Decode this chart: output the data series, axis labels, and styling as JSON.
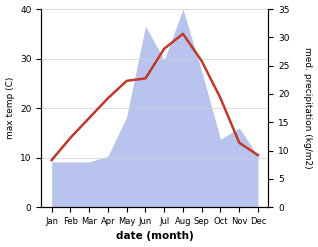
{
  "months": [
    "Jan",
    "Feb",
    "Mar",
    "Apr",
    "May",
    "Jun",
    "Jul",
    "Aug",
    "Sep",
    "Oct",
    "Nov",
    "Dec"
  ],
  "temperature": [
    9.5,
    14.0,
    18.0,
    22.0,
    25.5,
    26.0,
    32.0,
    35.0,
    29.5,
    22.0,
    13.0,
    10.5
  ],
  "precipitation": [
    8.0,
    8.0,
    8.0,
    9.0,
    16.0,
    32.0,
    26.0,
    35.0,
    24.0,
    12.0,
    14.0,
    9.0
  ],
  "temp_color": "#c0392b",
  "precip_color": "#b8c4ee",
  "left_ylim": [
    0,
    40
  ],
  "right_ylim": [
    0,
    35
  ],
  "left_yticks": [
    0,
    10,
    20,
    30,
    40
  ],
  "right_yticks": [
    0,
    5,
    10,
    15,
    20,
    25,
    30,
    35
  ],
  "xlabel": "date (month)",
  "ylabel_left": "max temp (C)",
  "ylabel_right": "med. precipitation (kg/m2)",
  "bg_color": "#ffffff",
  "grid_color": "#d0d0d0"
}
